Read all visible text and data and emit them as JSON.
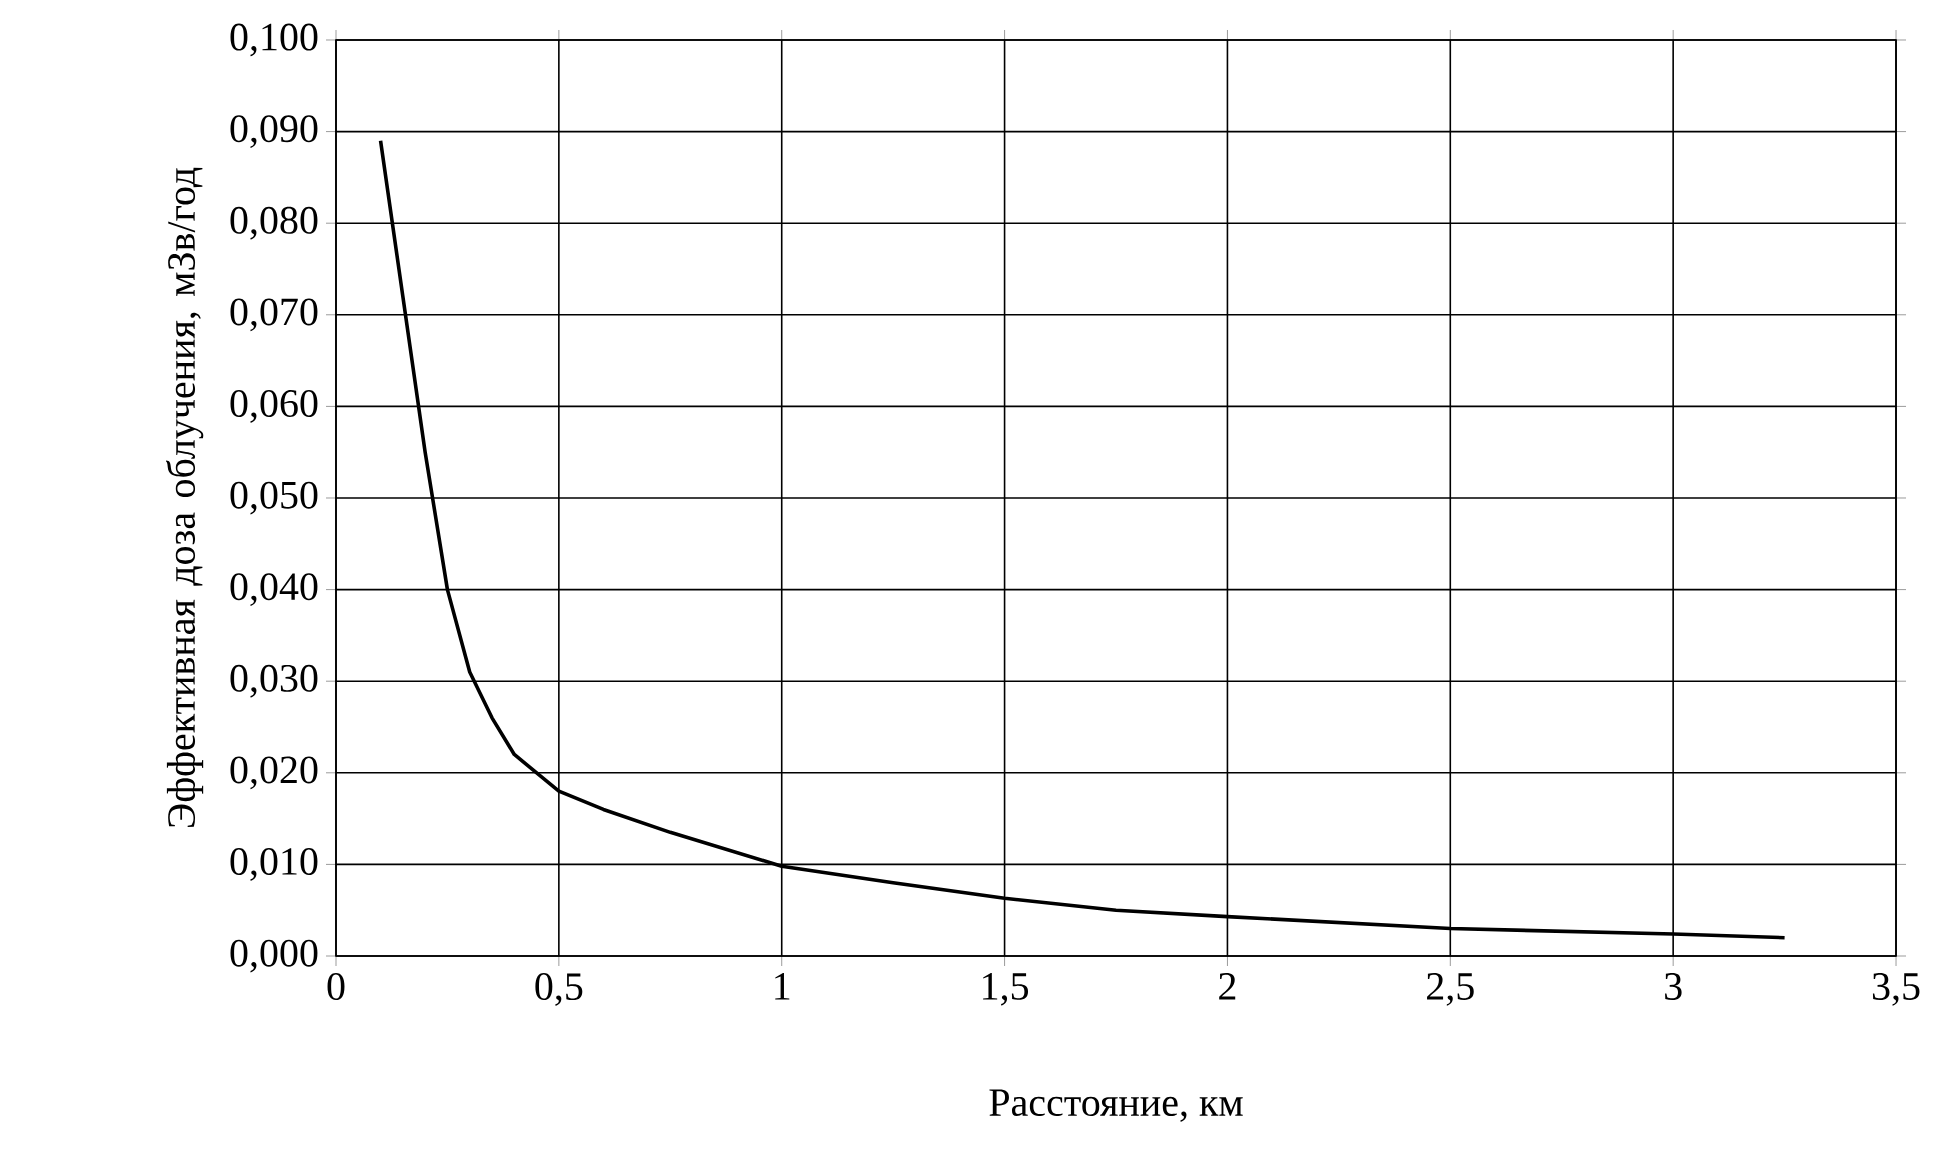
{
  "chart_data": {
    "type": "line",
    "xlabel": "Расстояние, км",
    "ylabel": "Эффективная доза облучения, мЗв/год",
    "xlim": [
      0,
      3.5
    ],
    "ylim": [
      0,
      0.1
    ],
    "xticks": [
      0,
      {
        "value": 0.5,
        "label": "0,5"
      },
      1,
      {
        "value": 1.5,
        "label": "1,5"
      },
      2,
      {
        "value": 2.5,
        "label": "2,5"
      },
      3,
      {
        "value": 3.5,
        "label": "3,5"
      }
    ],
    "yticks": [
      {
        "value": 0,
        "label": "0,000"
      },
      {
        "value": 0.01,
        "label": "0,010"
      },
      {
        "value": 0.02,
        "label": "0,020"
      },
      {
        "value": 0.03,
        "label": "0,030"
      },
      {
        "value": 0.04,
        "label": "0,040"
      },
      {
        "value": 0.05,
        "label": "0,050"
      },
      {
        "value": 0.06,
        "label": "0,060"
      },
      {
        "value": 0.07,
        "label": "0,070"
      },
      {
        "value": 0.08,
        "label": "0,080"
      },
      {
        "value": 0.09,
        "label": "0,090"
      },
      {
        "value": 0.1,
        "label": "0,100"
      }
    ],
    "grid": true,
    "marker": "none",
    "line_style": "solid",
    "series": [
      {
        "color": "#000000",
        "x": [
          0.1,
          0.15,
          0.2,
          0.25,
          0.3,
          0.35,
          0.4,
          0.5,
          0.6,
          0.75,
          1,
          1.25,
          1.5,
          1.75,
          2,
          2.5,
          3,
          3.25
        ],
        "values": [
          0.089,
          0.072,
          0.055,
          0.04,
          0.031,
          0.026,
          0.022,
          0.018,
          0.016,
          0.0135,
          0.0098,
          0.008,
          0.0063,
          0.005,
          0.0043,
          0.003,
          0.0024,
          0.002
        ]
      }
    ]
  }
}
